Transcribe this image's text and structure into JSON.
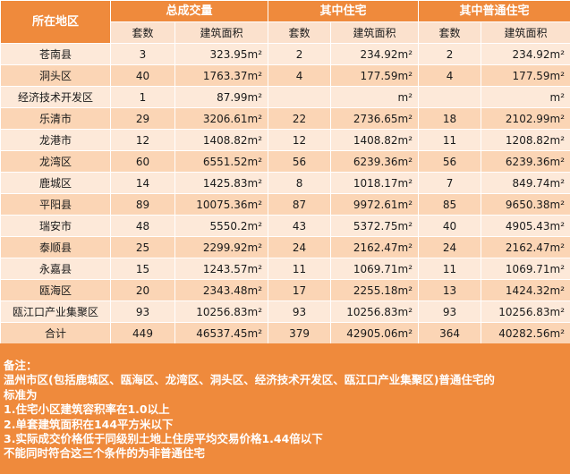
{
  "header": {
    "region": "所在地区",
    "total": "总成交量",
    "residential": "其中住宅",
    "ordinary": "其中普通住宅",
    "sets": "套数",
    "area": "建筑面积"
  },
  "unit": "m²",
  "rows": [
    {
      "region": "苍南县",
      "t_sets": "3",
      "t_area": "323.95",
      "r_sets": "2",
      "r_area": "234.92",
      "o_sets": "2",
      "o_area": "234.92"
    },
    {
      "region": "洞头区",
      "t_sets": "40",
      "t_area": "1763.37",
      "r_sets": "4",
      "r_area": "177.59",
      "o_sets": "4",
      "o_area": "177.59"
    },
    {
      "region": "经济技术开发区",
      "t_sets": "1",
      "t_area": "87.99",
      "r_sets": "",
      "r_area": "",
      "o_sets": "",
      "o_area": ""
    },
    {
      "region": "乐清市",
      "t_sets": "29",
      "t_area": "3206.61",
      "r_sets": "22",
      "r_area": "2736.65",
      "o_sets": "18",
      "o_area": "2102.99"
    },
    {
      "region": "龙港市",
      "t_sets": "12",
      "t_area": "1408.82",
      "r_sets": "12",
      "r_area": "1408.82",
      "o_sets": "11",
      "o_area": "1208.82"
    },
    {
      "region": "龙湾区",
      "t_sets": "60",
      "t_area": "6551.52",
      "r_sets": "56",
      "r_area": "6239.36",
      "o_sets": "56",
      "o_area": "6239.36"
    },
    {
      "region": "鹿城区",
      "t_sets": "14",
      "t_area": "1425.83",
      "r_sets": "8",
      "r_area": "1018.17",
      "o_sets": "7",
      "o_area": "849.74"
    },
    {
      "region": "平阳县",
      "t_sets": "89",
      "t_area": "10075.36",
      "r_sets": "87",
      "r_area": "9972.61",
      "o_sets": "85",
      "o_area": "9650.38"
    },
    {
      "region": "瑞安市",
      "t_sets": "48",
      "t_area": "5550.2",
      "r_sets": "43",
      "r_area": "5372.75",
      "o_sets": "40",
      "o_area": "4905.43"
    },
    {
      "region": "泰顺县",
      "t_sets": "25",
      "t_area": "2299.92",
      "r_sets": "24",
      "r_area": "2162.47",
      "o_sets": "24",
      "o_area": "2162.47"
    },
    {
      "region": "永嘉县",
      "t_sets": "15",
      "t_area": "1243.57",
      "r_sets": "11",
      "r_area": "1069.71",
      "o_sets": "11",
      "o_area": "1069.71"
    },
    {
      "region": "瓯海区",
      "t_sets": "20",
      "t_area": "2343.48",
      "r_sets": "17",
      "r_area": "2255.18",
      "o_sets": "13",
      "o_area": "1424.32"
    },
    {
      "region": "瓯江口产业集聚区",
      "t_sets": "93",
      "t_area": "10256.83",
      "r_sets": "93",
      "r_area": "10256.83",
      "o_sets": "93",
      "o_area": "10256.83"
    },
    {
      "region": "合计",
      "t_sets": "449",
      "t_area": "46537.45",
      "r_sets": "379",
      "r_area": "42905.06",
      "o_sets": "364",
      "o_area": "40282.56"
    }
  ],
  "notes": [
    "备注：",
    "温州市区(包括鹿城区、瓯海区、龙湾区、洞头区、经济技术开发区、瓯江口产业集聚区)普通住宅的",
    "标准为",
    "1.住宅小区建筑容积率在1.0以上",
    "2.单套建筑面积在144平方米以下",
    "3.实际成交价格低于同级别土地上住房平均交易价格1.44倍以下",
    "不能同时符合这三个条件的为非普通住宅"
  ]
}
